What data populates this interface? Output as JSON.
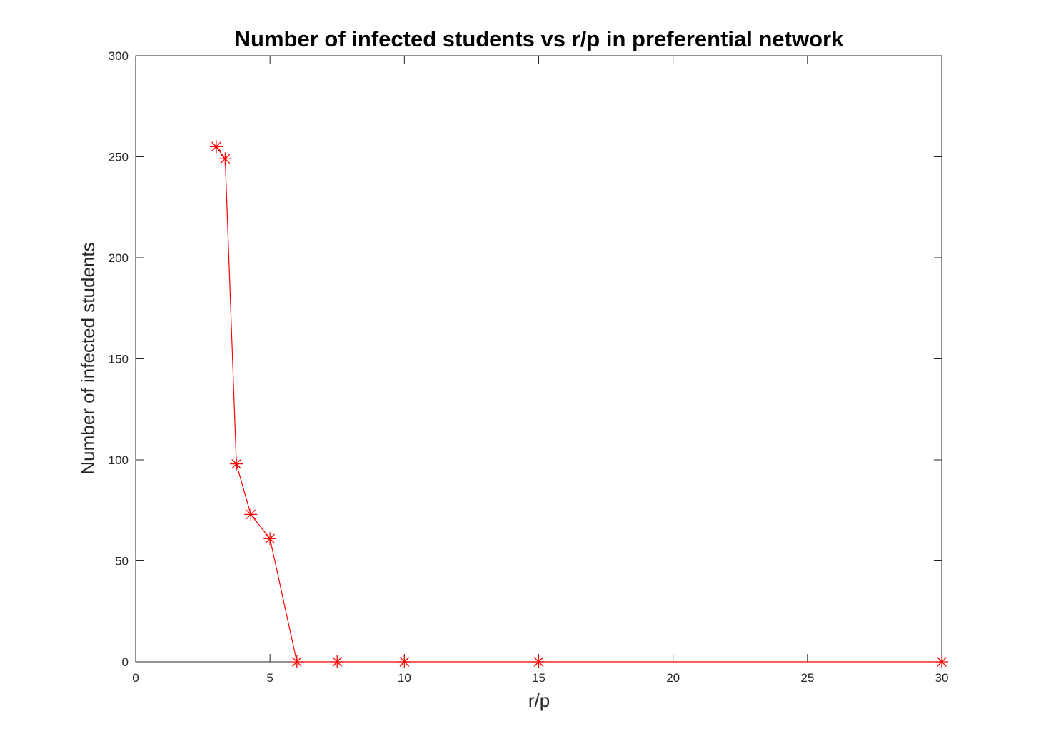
{
  "chart_data": {
    "type": "line",
    "title": "Number of infected students vs r/p in preferential network",
    "xlabel": "r/p",
    "ylabel": "Number of infected students",
    "xlim": [
      0,
      30
    ],
    "ylim": [
      0,
      300
    ],
    "xticks": [
      0,
      5,
      10,
      15,
      20,
      25,
      30
    ],
    "yticks": [
      0,
      50,
      100,
      150,
      200,
      250,
      300
    ],
    "xtick_labels": [
      "0",
      "5",
      "10",
      "15",
      "20",
      "25",
      "30"
    ],
    "ytick_labels": [
      "0",
      "50",
      "100",
      "150",
      "200",
      "250",
      "300"
    ],
    "grid": false,
    "legend": false,
    "series": [
      {
        "color": "#ff0000",
        "marker": "asterisk",
        "x": [
          3,
          3.333,
          3.75,
          4.286,
          5,
          6,
          7.5,
          10,
          15,
          30
        ],
        "y": [
          255,
          249,
          98,
          73,
          61,
          0,
          0,
          0,
          0,
          0
        ]
      }
    ]
  }
}
